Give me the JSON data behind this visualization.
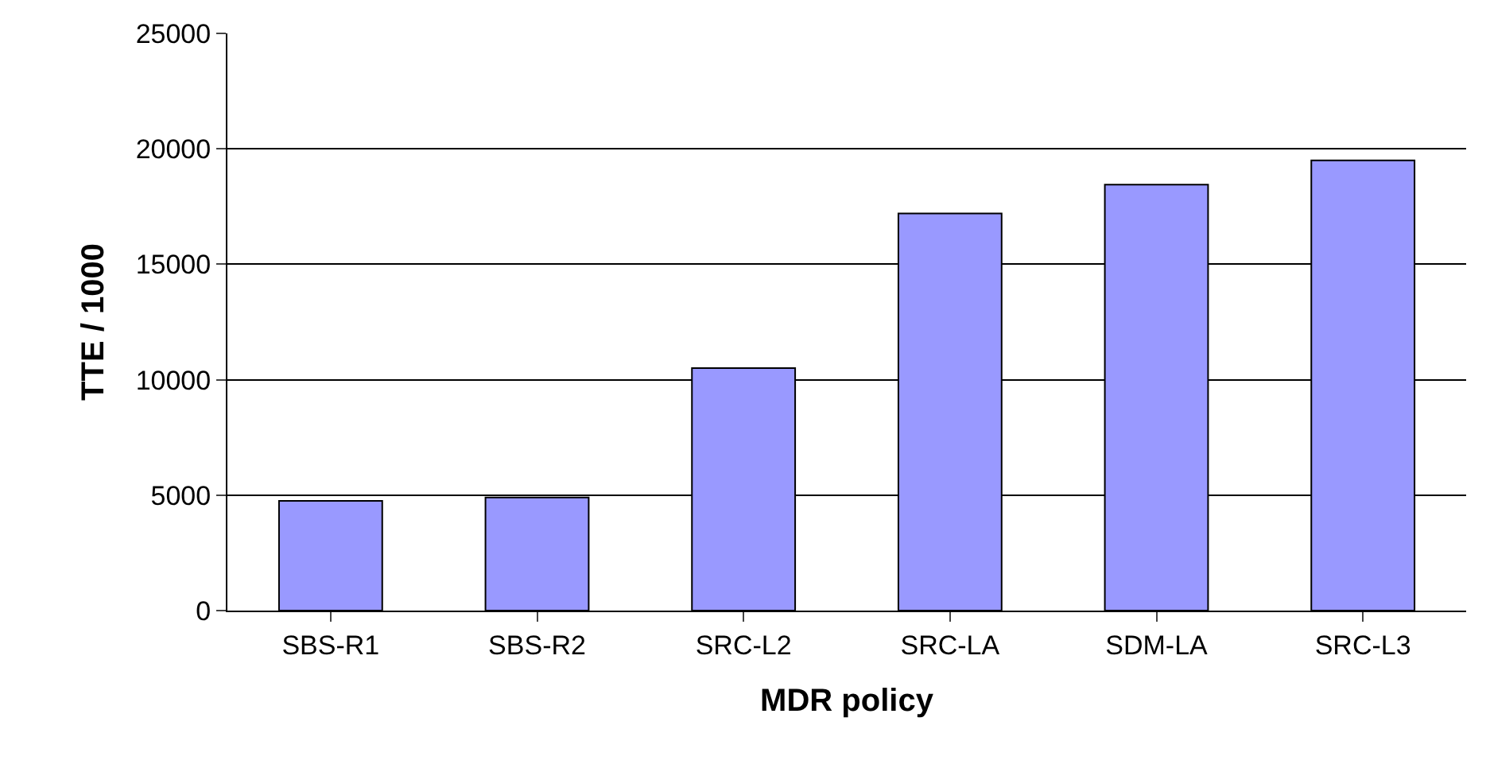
{
  "chart_data": {
    "type": "bar",
    "xlabel": "MDR policy",
    "ylabel": "TTE / 1000",
    "categories": [
      "SBS-R1",
      "SBS-R2",
      "SRC-L2",
      "SRC-LA",
      "SDM-LA",
      "SRC-L3"
    ],
    "values": [
      4750,
      4900,
      10500,
      17200,
      18450,
      19500
    ],
    "color": "#9999ff",
    "ylim": [
      0,
      25000
    ],
    "yticks": [
      0,
      5000,
      10000,
      15000,
      20000,
      25000
    ],
    "grid": "y",
    "legend": false
  }
}
